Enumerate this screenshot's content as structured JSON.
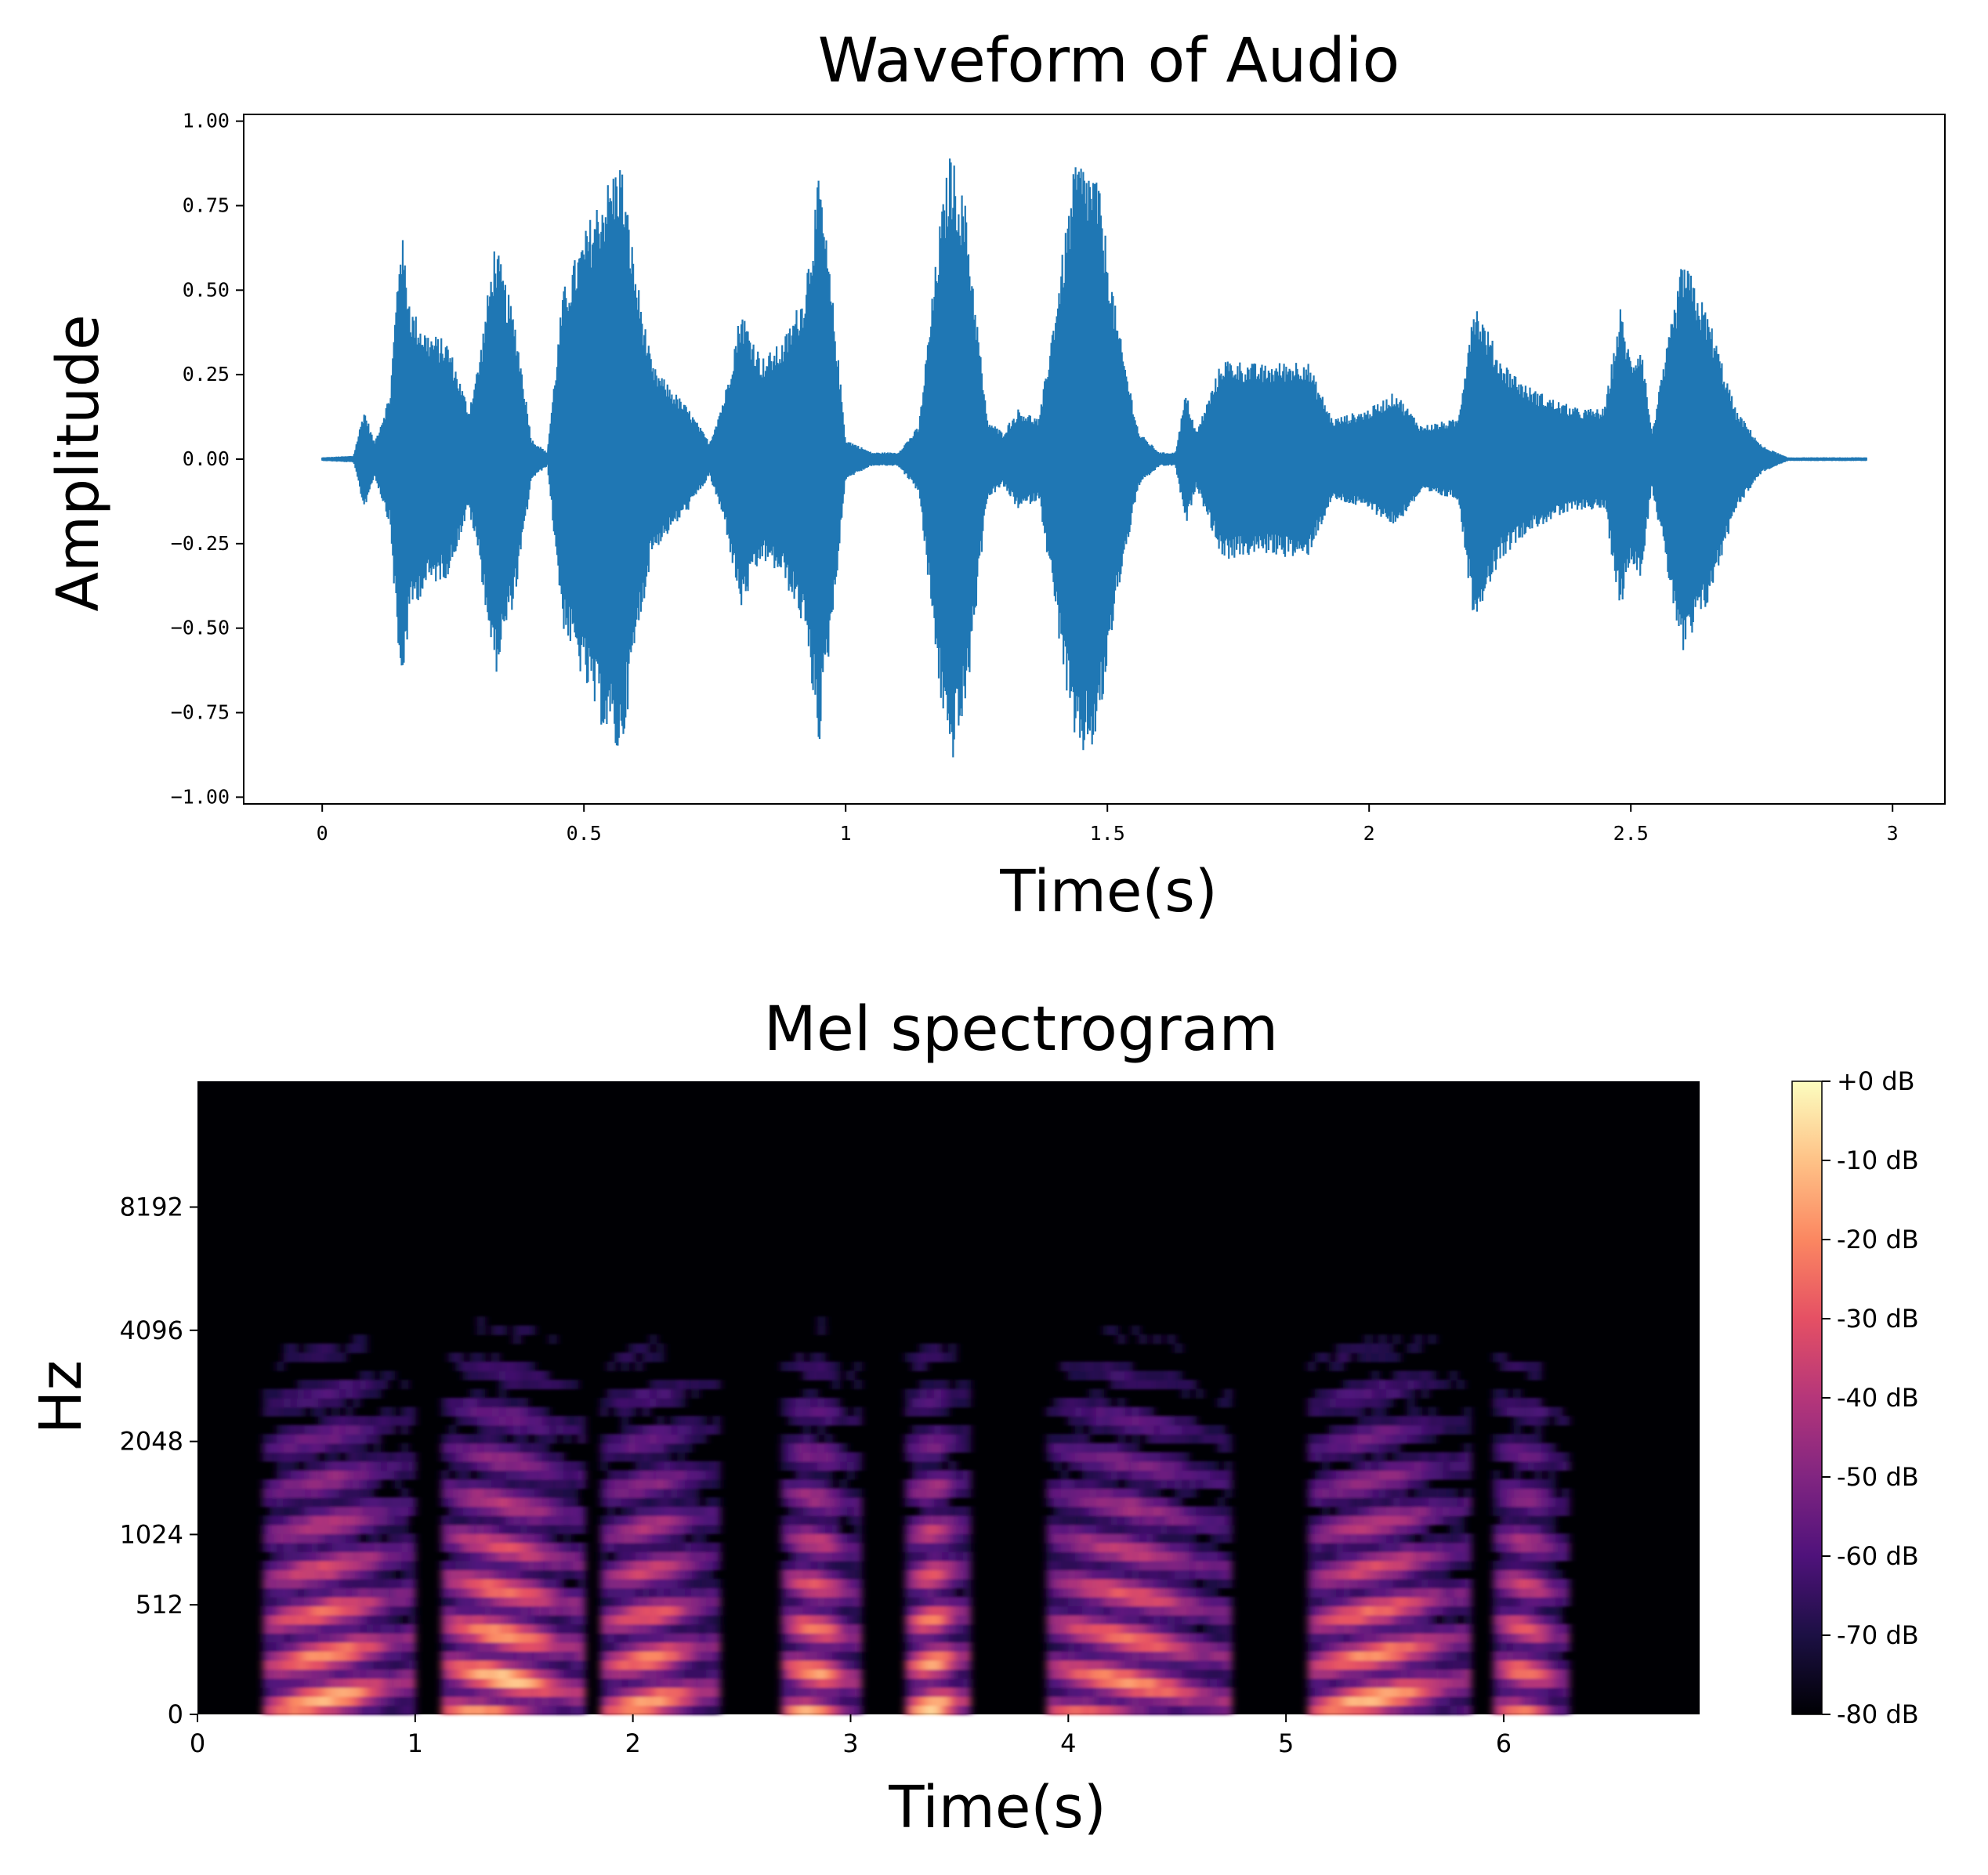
{
  "chart_data": [
    {
      "type": "line",
      "title": "Waveform of Audio",
      "xlabel": "Time(s)",
      "ylabel": "Amplitude",
      "xlim": [
        -0.15,
        3.1
      ],
      "ylim": [
        -1.02,
        1.02
      ],
      "xticks": [
        0,
        0.5,
        1,
        1.5,
        2,
        2.5,
        3
      ],
      "xtick_labels": [
        "0",
        "0.5",
        "1",
        "1.5",
        "2",
        "2.5",
        "3"
      ],
      "yticks": [
        1.0,
        0.75,
        0.5,
        0.25,
        0.0,
        -0.25,
        -0.5,
        -0.75,
        -1.0
      ],
      "ytick_labels": [
        "1.00",
        "0.75",
        "0.50",
        "0.25",
        "0.00",
        "−0.25",
        "−0.50",
        "−0.75",
        "−1.00"
      ],
      "color": "#1f77b4",
      "duration": 2.95,
      "envelope": {
        "time": [
          0,
          0.06,
          0.08,
          0.1,
          0.13,
          0.15,
          0.17,
          0.2,
          0.24,
          0.28,
          0.3,
          0.33,
          0.37,
          0.4,
          0.43,
          0.46,
          0.52,
          0.57,
          0.6,
          0.63,
          0.7,
          0.74,
          0.77,
          0.8,
          0.84,
          0.88,
          0.92,
          0.95,
          0.98,
          1.0,
          1.05,
          1.1,
          1.14,
          1.18,
          1.2,
          1.23,
          1.27,
          1.3,
          1.33,
          1.37,
          1.4,
          1.44,
          1.48,
          1.52,
          1.56,
          1.6,
          1.63,
          1.65,
          1.67,
          1.72,
          1.8,
          1.88,
          1.93,
          2.0,
          2.05,
          2.1,
          2.17,
          2.2,
          2.25,
          2.3,
          2.35,
          2.4,
          2.45,
          2.48,
          2.5,
          2.52,
          2.54,
          2.6,
          2.65,
          2.7,
          2.75,
          2.8,
          2.95
        ],
        "amplitude": [
          0.005,
          0.01,
          0.15,
          0.05,
          0.2,
          0.7,
          0.45,
          0.38,
          0.35,
          0.15,
          0.3,
          0.65,
          0.4,
          0.06,
          0.02,
          0.5,
          0.75,
          0.9,
          0.55,
          0.28,
          0.15,
          0.05,
          0.2,
          0.45,
          0.3,
          0.35,
          0.5,
          0.85,
          0.4,
          0.06,
          0.02,
          0.02,
          0.1,
          0.7,
          0.92,
          0.75,
          0.12,
          0.08,
          0.15,
          0.12,
          0.45,
          0.9,
          0.85,
          0.4,
          0.08,
          0.02,
          0.02,
          0.2,
          0.08,
          0.3,
          0.28,
          0.3,
          0.12,
          0.15,
          0.2,
          0.1,
          0.12,
          0.48,
          0.3,
          0.22,
          0.18,
          0.15,
          0.15,
          0.45,
          0.3,
          0.35,
          0.08,
          0.6,
          0.42,
          0.15,
          0.04,
          0.005,
          0.005
        ]
      }
    },
    {
      "type": "heatmap",
      "title": "Mel spectrogram",
      "xlabel": "Time(s)",
      "ylabel": "Hz",
      "xlim": [
        0,
        6.9
      ],
      "xticks": [
        0,
        1,
        2,
        3,
        4,
        5,
        6
      ],
      "xtick_labels": [
        "0",
        "1",
        "2",
        "3",
        "4",
        "5",
        "6"
      ],
      "yticks": [
        0,
        512,
        1024,
        2048,
        4096,
        8192
      ],
      "ytick_labels": [
        "0",
        "512",
        "1024",
        "2048",
        "4096",
        "8192"
      ],
      "colorbar": {
        "range_db": [
          -80,
          0
        ],
        "tick_labels": [
          "+0 dB",
          "-10 dB",
          "-20 dB",
          "-30 dB",
          "-40 dB",
          "-50 dB",
          "-60 dB",
          "-70 dB",
          "-80 dB"
        ],
        "colormap": [
          "#000004",
          "#1c1044",
          "#4f127b",
          "#812581",
          "#b5367a",
          "#e55064",
          "#fb8761",
          "#fec287",
          "#fcfdbf"
        ]
      },
      "segments": [
        {
          "start": 0.3,
          "end": 1.0,
          "level": 0.9
        },
        {
          "start": 1.12,
          "end": 1.78,
          "level": 0.98
        },
        {
          "start": 1.85,
          "end": 2.4,
          "level": 0.85
        },
        {
          "start": 2.68,
          "end": 3.05,
          "level": 0.9
        },
        {
          "start": 3.25,
          "end": 3.55,
          "level": 0.95
        },
        {
          "start": 3.9,
          "end": 4.75,
          "level": 0.85
        },
        {
          "start": 5.1,
          "end": 5.85,
          "level": 0.9
        },
        {
          "start": 5.95,
          "end": 6.3,
          "level": 0.8
        }
      ]
    }
  ]
}
